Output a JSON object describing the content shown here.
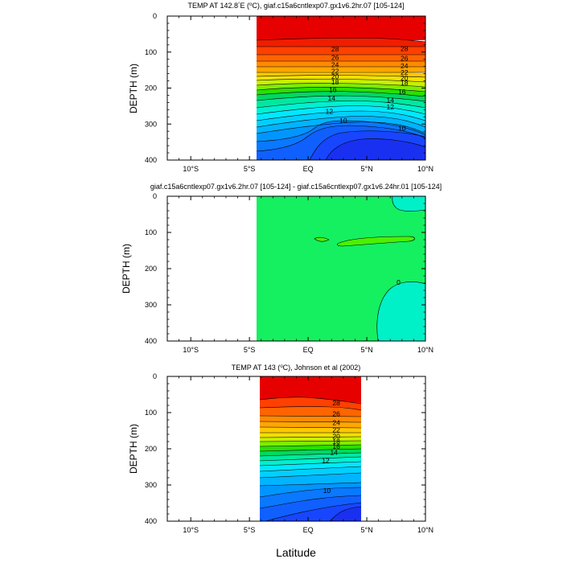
{
  "chart_data": [
    {
      "type": "contour",
      "title": "TEMP AT 142.8°E (°C), giaf.c15a6cntlexp07.gx1v6.2hr.07 [105-124]",
      "title_parts": [
        "TEMP AT 142.8",
        "°",
        "E (",
        "o",
        "C), giaf.c15a6cntlexp07.gx1v6.2hr.07 [105-124]"
      ],
      "xlabel": "",
      "ylabel": "DEPTH (m)",
      "xlim": [
        -12,
        10
      ],
      "ylim": [
        400,
        0
      ],
      "x_ticks": [
        -10,
        -5,
        0,
        5,
        10
      ],
      "x_tick_labels": [
        "10°S",
        "5°S",
        "EQ",
        "5°N",
        "10°N"
      ],
      "y_ticks": [
        0,
        100,
        200,
        300,
        400
      ],
      "y_tick_labels": [
        "0",
        "100",
        "200",
        "300",
        "400"
      ],
      "data_extent_lat": [
        -1.8,
        10
      ],
      "contour_levels": [
        10,
        11,
        12,
        13,
        14,
        15,
        16,
        17,
        18,
        19,
        20,
        21,
        22,
        23,
        24,
        25,
        26,
        27,
        28,
        29
      ],
      "contour_labels": [
        {
          "text": "28",
          "lat": 2.3,
          "depth": 92
        },
        {
          "text": "28",
          "lat": 8.2,
          "depth": 90
        },
        {
          "text": "26",
          "lat": 2.3,
          "depth": 115
        },
        {
          "text": "26",
          "lat": 8.2,
          "depth": 117
        },
        {
          "text": "24",
          "lat": 2.3,
          "depth": 135
        },
        {
          "text": "24",
          "lat": 8.2,
          "depth": 138
        },
        {
          "text": "22",
          "lat": 2.3,
          "depth": 153
        },
        {
          "text": "22",
          "lat": 8.2,
          "depth": 156
        },
        {
          "text": "20",
          "lat": 2.3,
          "depth": 168
        },
        {
          "text": "20",
          "lat": 8.2,
          "depth": 172
        },
        {
          "text": "18",
          "lat": 2.3,
          "depth": 183
        },
        {
          "text": "18",
          "lat": 8.2,
          "depth": 186
        },
        {
          "text": "16",
          "lat": 2.1,
          "depth": 205
        },
        {
          "text": "16",
          "lat": 8.0,
          "depth": 210
        },
        {
          "text": "14",
          "lat": 2.0,
          "depth": 228
        },
        {
          "text": "14",
          "lat": 7.0,
          "depth": 233
        },
        {
          "text": "12",
          "lat": 1.8,
          "depth": 265
        },
        {
          "text": "12",
          "lat": 7.0,
          "depth": 252
        },
        {
          "text": "10",
          "lat": 3.0,
          "depth": 290
        },
        {
          "text": "10",
          "lat": 8.0,
          "depth": 312
        }
      ]
    },
    {
      "type": "contour",
      "title": "giaf.c15a6cntlexp07.gx1v6.2hr.07 [105-124] - giaf.c15a6cntlexp07.gx1v6.24hr.01 [105-124]",
      "xlabel": "",
      "ylabel": "DEPTH (m)",
      "xlim": [
        -12,
        10
      ],
      "ylim": [
        400,
        0
      ],
      "x_ticks": [
        -10,
        -5,
        0,
        5,
        10
      ],
      "x_tick_labels": [
        "10°S",
        "5°S",
        "EQ",
        "5°N",
        "10°N"
      ],
      "y_ticks": [
        0,
        100,
        200,
        300,
        400
      ],
      "y_tick_labels": [
        "0",
        "100",
        "200",
        "300",
        "400"
      ],
      "data_extent_lat": [
        -1.8,
        10
      ],
      "contour_labels": [
        {
          "text": "0",
          "lat": 7.7,
          "depth": 238
        }
      ]
    },
    {
      "type": "contour",
      "title": "TEMP AT 143 (°C), Johnson et al (2002)",
      "title_parts": [
        "TEMP AT 143 (",
        "o",
        "C), Johnson et al (2002)"
      ],
      "xlabel": "Latitude",
      "ylabel": "DEPTH (m)",
      "xlim": [
        -12,
        10
      ],
      "ylim": [
        400,
        0
      ],
      "x_ticks": [
        -10,
        -5,
        0,
        5,
        10
      ],
      "x_tick_labels": [
        "10°S",
        "5°S",
        "EQ",
        "5°N",
        "10°N"
      ],
      "y_ticks": [
        0,
        100,
        200,
        300,
        400
      ],
      "y_tick_labels": [
        "0",
        "100",
        "200",
        "300",
        "400"
      ],
      "data_extent_lat": [
        -1.5,
        5
      ],
      "contour_labels": [
        {
          "text": "28",
          "lat": 2.4,
          "depth": 73
        },
        {
          "text": "26",
          "lat": 2.4,
          "depth": 103
        },
        {
          "text": "24",
          "lat": 2.4,
          "depth": 128
        },
        {
          "text": "22",
          "lat": 2.4,
          "depth": 148
        },
        {
          "text": "20",
          "lat": 2.4,
          "depth": 165
        },
        {
          "text": "18",
          "lat": 2.4,
          "depth": 180
        },
        {
          "text": "16",
          "lat": 2.4,
          "depth": 193
        },
        {
          "text": "14",
          "lat": 2.2,
          "depth": 210
        },
        {
          "text": "12",
          "lat": 1.5,
          "depth": 232
        },
        {
          "text": "10",
          "lat": 1.6,
          "depth": 315
        }
      ]
    }
  ],
  "colors": {
    "t29": "#e60000",
    "t28": "#f01d00",
    "t27": "#ff4000",
    "t26": "#ff6400",
    "t25": "#ff8a00",
    "t24": "#ffa600",
    "t23": "#ffc800",
    "t22": "#f0e000",
    "t21": "#c8f000",
    "t20": "#80ec00",
    "t19": "#28e000",
    "t18": "#00d860",
    "t17": "#00e8a0",
    "t16": "#00f0d0",
    "t15": "#00e8ff",
    "t14": "#00d0ff",
    "t13": "#00b4ff",
    "t12": "#0096ff",
    "t11": "#0a78ff",
    "t10": "#1060ff",
    "t09": "#1846ff",
    "t08": "#1a30f0",
    "diff_zero": "#14f060",
    "diff_pos": "#4cf000",
    "diff_neg": "#00f0c8"
  }
}
